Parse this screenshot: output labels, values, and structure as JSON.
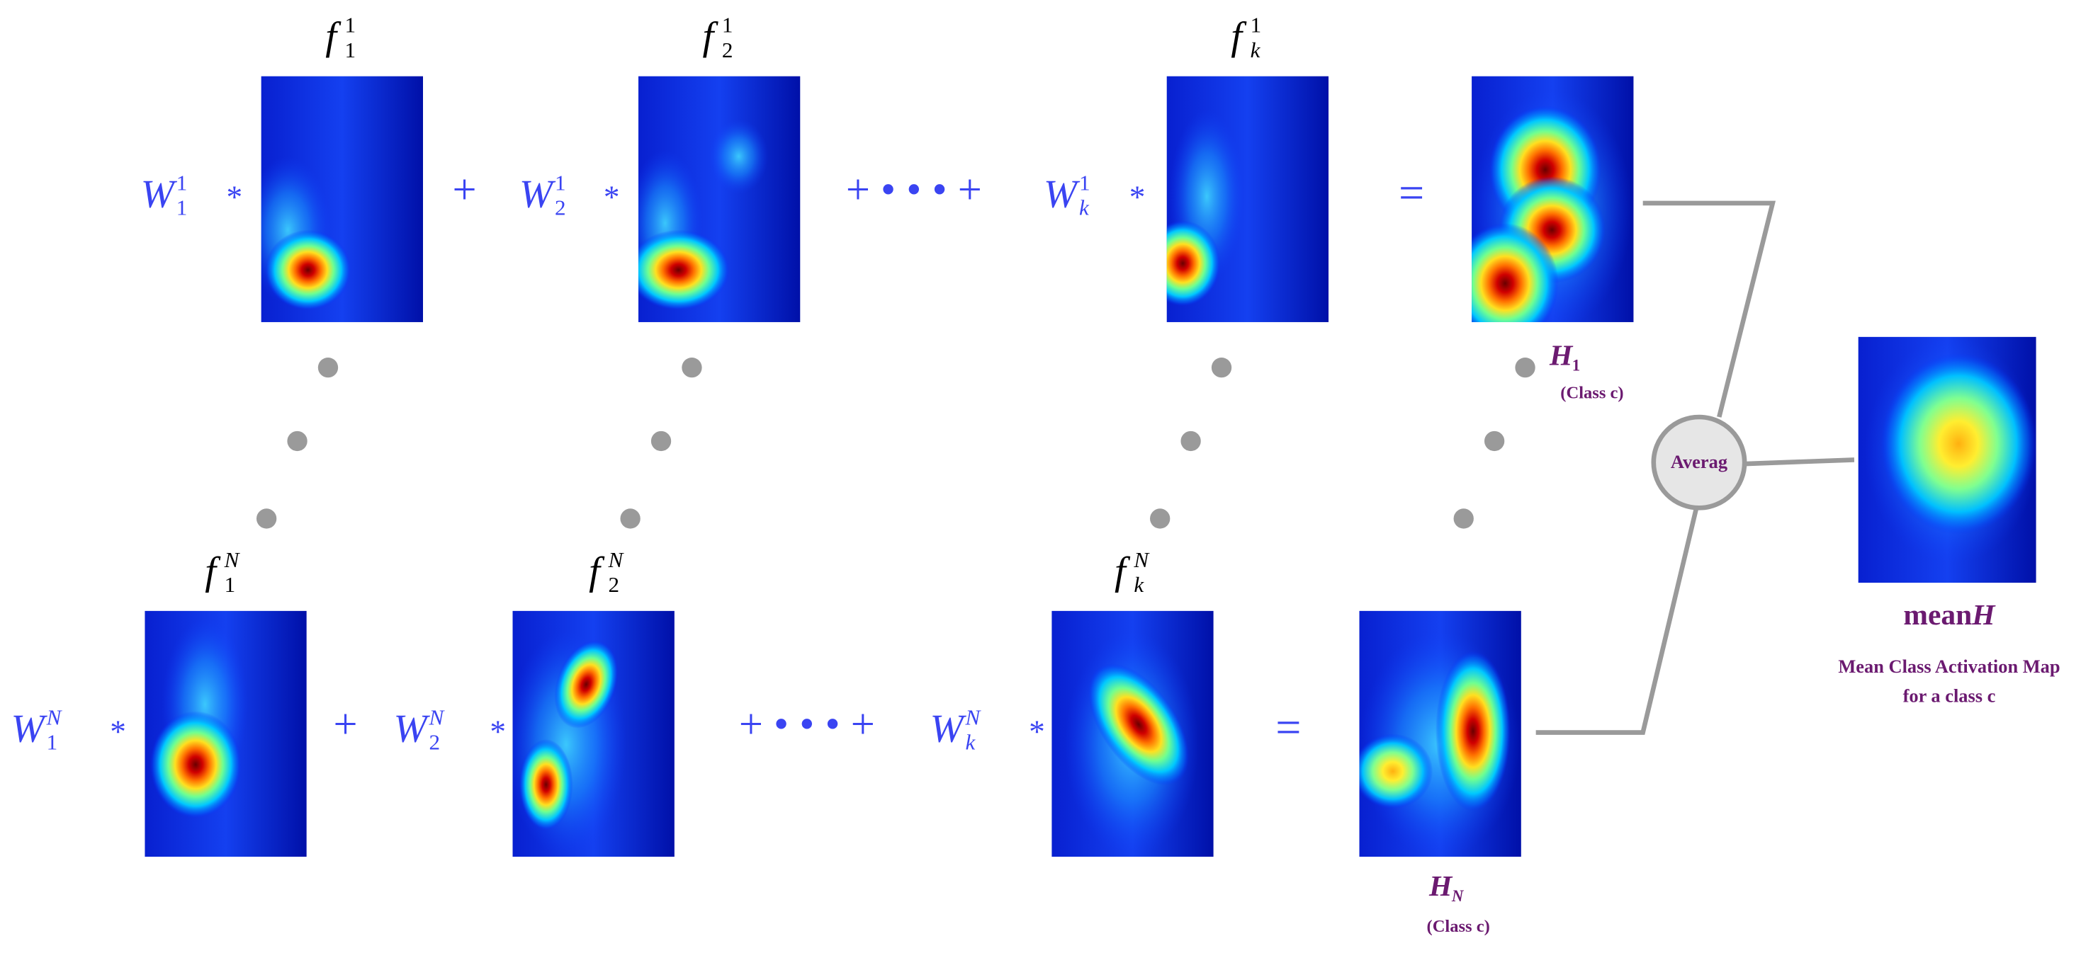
{
  "rows": [
    {
      "terms": [
        {
          "weight": {
            "base": "W",
            "sub": "1",
            "sup": "1"
          },
          "multiply": "*",
          "feature": {
            "base": "f",
            "sub": "1",
            "sup": "1"
          }
        },
        {
          "weight": {
            "base": "W",
            "sub": "2",
            "sup": "1"
          },
          "multiply": "*",
          "feature": {
            "base": "f",
            "sub": "2",
            "sup": "1"
          }
        },
        {
          "weight": {
            "base": "W",
            "sub": "k",
            "sup": "1"
          },
          "multiply": "*",
          "feature": {
            "base": "f",
            "sub": "k",
            "sup": "1"
          }
        }
      ],
      "operators": [
        "+",
        "+ • • • +"
      ],
      "equals": "=",
      "result": {
        "base": "H",
        "sub": "1",
        "note": "(Class c)"
      }
    },
    {
      "terms": [
        {
          "weight": {
            "base": "W",
            "sub": "1",
            "sup": "N"
          },
          "multiply": "*",
          "feature": {
            "base": "f",
            "sub": "1",
            "sup": "N"
          }
        },
        {
          "weight": {
            "base": "W",
            "sub": "2",
            "sup": "N"
          },
          "multiply": "*",
          "feature": {
            "base": "f",
            "sub": "2",
            "sup": "N"
          }
        },
        {
          "weight": {
            "base": "W",
            "sub": "k",
            "sup": "N"
          },
          "multiply": "*",
          "feature": {
            "base": "f",
            "sub": "k",
            "sup": "N"
          }
        }
      ],
      "operators": [
        "+",
        "+ • • • +"
      ],
      "equals": "=",
      "result": {
        "base": "H",
        "sub": "N",
        "note": "(Class c)"
      }
    }
  ],
  "average": "Averag",
  "output": {
    "title_base": "mean",
    "title_var": "H",
    "caption_lines": [
      "Mean Class Activation Map",
      "for a class c"
    ]
  }
}
